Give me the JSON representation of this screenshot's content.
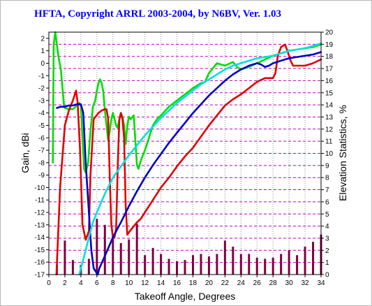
{
  "chart_data": {
    "type": "line",
    "title": "HFTA, Copyright ARRL 2003-2004, by N6BV, Ver. 1.03",
    "xlabel": "Takeoff Angle, Degrees",
    "ylabel": "Gain, dBi",
    "y2label": "Elevation Statistics, %",
    "xlim": [
      0,
      34
    ],
    "ylim": [
      -17,
      2.5
    ],
    "y2lim": [
      0,
      20
    ],
    "x_ticks": [
      "0",
      "2",
      "4",
      "6",
      "8",
      "10",
      "12",
      "14",
      "16",
      "18",
      "20",
      "22",
      "24",
      "26",
      "28",
      "30",
      "32",
      "34"
    ],
    "y_ticks": [
      "2",
      "1",
      "0",
      "-1",
      "-2",
      "-3",
      "-4",
      "-5",
      "-6",
      "-7",
      "-8",
      "-9",
      "-10",
      "-11",
      "-12",
      "-13",
      "-14",
      "-15",
      "-16",
      "-17"
    ],
    "y2_ticks": [
      "20",
      "19",
      "18",
      "17",
      "16",
      "15",
      "14",
      "13",
      "12",
      "11",
      "10",
      "9",
      "8",
      "7",
      "6",
      "5",
      "4",
      "3",
      "2",
      "1",
      "0"
    ],
    "grid": true,
    "colors": {
      "green": "#00dd00",
      "red": "#e00000",
      "blue": "#0000cc",
      "cyan": "#00e0e0",
      "bars": "#800040",
      "grid_h": "#c000c0",
      "grid_v": "#909090",
      "title": "#0000ff"
    },
    "series": [
      {
        "color": "green",
        "x": [
          0.5,
          0.6,
          0.8,
          1,
          1.2,
          1.5,
          1.9,
          2,
          2.5,
          3,
          3.5,
          3.8,
          4,
          4.2,
          4.4,
          4.6,
          4.9,
          5.2,
          5.5,
          5.8,
          6,
          6.2,
          6.4,
          6.6,
          6.8,
          7,
          7.2,
          7.4,
          7.6,
          7.8,
          8,
          8.2,
          8.4,
          8.6,
          8.8,
          9,
          9.2,
          9.4,
          9.6,
          9.8,
          10,
          10.2,
          10.6,
          11,
          11.2,
          11.5,
          12,
          12.5,
          13,
          13.5,
          14,
          15,
          16,
          17,
          18,
          19,
          19.5,
          20,
          21,
          22,
          23,
          23.5,
          24,
          25,
          26,
          27,
          28,
          29,
          30,
          31,
          32,
          33,
          34
        ],
        "y": [
          -8,
          1.5,
          2.5,
          1.5,
          0.5,
          -0.5,
          -3.5,
          -3.6,
          -3.7,
          -3.7,
          -3.4,
          -3.2,
          -3.5,
          -6,
          -8.5,
          -8.8,
          -8,
          -5.5,
          -3.5,
          -3,
          -2.2,
          -1.6,
          -1.3,
          -1.6,
          -2.3,
          -3.8,
          -5,
          -6.2,
          -5.5,
          -4.5,
          -4,
          -4.5,
          -5,
          -5.2,
          -4.5,
          -4,
          -4.3,
          -5,
          -6.5,
          -5,
          -4.3,
          -4.5,
          -4.2,
          -8.2,
          -8.5,
          -7.8,
          -7,
          -6,
          -5,
          -4.5,
          -4.2,
          -3.5,
          -3,
          -2.5,
          -2,
          -1.6,
          -1.5,
          -0.8,
          0,
          -0.2,
          0.1,
          -0.3,
          -0.5,
          -0.3,
          0,
          0.3,
          0.6,
          0.8,
          1,
          1.1,
          1.2,
          1.3,
          1.5
        ]
      },
      {
        "color": "red",
        "x": [
          0.95,
          1.05,
          1.4,
          2,
          2.5,
          3,
          3.4,
          3.6,
          3.9,
          4.2,
          4.6,
          5,
          5.2,
          5.6,
          6.2,
          6.6,
          7,
          7.2,
          7.4,
          7.6,
          7.8,
          8,
          8.2,
          8.4,
          8.6,
          8.8,
          9,
          9.2,
          9.4,
          9.6,
          9.8,
          10,
          10.5,
          11,
          11.5,
          12,
          13,
          14,
          15,
          16,
          17,
          18,
          19,
          20,
          21,
          22,
          23,
          24,
          25,
          26,
          27,
          28,
          28.3,
          28.6,
          29,
          29.5,
          29.8,
          30.2,
          30.5,
          31,
          32,
          33,
          34
        ],
        "y": [
          -17,
          -15.5,
          -10,
          -5,
          -3.8,
          -3,
          -2.2,
          -3.2,
          -7,
          -13,
          -14.2,
          -13.5,
          -9,
          -4.5,
          -4,
          -3.8,
          -3.7,
          -3.7,
          -4.4,
          -9,
          -13,
          -14,
          -14,
          -13.3,
          -8.5,
          -4.6,
          -4,
          -4.5,
          -6,
          -11.5,
          -13.8,
          -13.6,
          -13.2,
          -12.8,
          -12.5,
          -12,
          -11,
          -10,
          -9.2,
          -8.3,
          -7.5,
          -6.8,
          -5.9,
          -5,
          -4.2,
          -3.4,
          -2.9,
          -2.5,
          -2,
          -1.5,
          -1.2,
          -1.2,
          -0.8,
          0.6,
          1.3,
          1.5,
          1,
          0.2,
          -0.2,
          -0.2,
          -0.2,
          0,
          0.3
        ]
      },
      {
        "color": "blue",
        "x": [
          1,
          1.5,
          2,
          2.5,
          3,
          3.5,
          4,
          4.3,
          4.6,
          5,
          5.3,
          5.6,
          5.9,
          6.1,
          6.3,
          7,
          8,
          9,
          10,
          11,
          12,
          13,
          14,
          15,
          16,
          17,
          18,
          19,
          20,
          21,
          22,
          23,
          24,
          25,
          26,
          26.5,
          27,
          27.5,
          28,
          28.5,
          29,
          30,
          31,
          32,
          33,
          34
        ],
        "y": [
          -3.6,
          -3.5,
          -3.5,
          -3.4,
          -3.4,
          -3.3,
          -3.3,
          -4,
          -8,
          -12,
          -15,
          -16.5,
          -16.8,
          -17,
          -16.5,
          -15.5,
          -14,
          -12.8,
          -11.5,
          -10.3,
          -9.2,
          -8.2,
          -7.3,
          -6.4,
          -5.6,
          -4.8,
          -4,
          -3.3,
          -2.6,
          -2,
          -1.4,
          -0.9,
          -0.5,
          -0.2,
          0,
          -0.1,
          -0.3,
          -0.2,
          0,
          0.1,
          0.2,
          0.4,
          0.5,
          0.6,
          0.7,
          0.9
        ]
      },
      {
        "color": "cyan",
        "x": [
          3.8,
          4,
          4.5,
          5,
          5.5,
          6,
          7,
          8,
          9,
          10,
          11,
          12,
          13,
          14,
          15,
          16,
          17,
          18,
          19,
          20,
          21,
          22,
          23,
          24,
          25,
          26,
          27,
          28,
          29,
          30,
          31,
          32,
          33,
          34
        ],
        "y": [
          -17,
          -16.5,
          -15.3,
          -14,
          -12.8,
          -12,
          -10.5,
          -9.2,
          -8.3,
          -7.4,
          -6.6,
          -5.8,
          -5.1,
          -4.4,
          -3.8,
          -3.2,
          -2.7,
          -2.2,
          -1.7,
          -1.3,
          -0.9,
          -0.5,
          -0.2,
          0,
          0.2,
          0.4,
          0.5,
          0.6,
          0.8,
          1,
          1.1,
          1.2,
          1.4,
          1.6
        ]
      }
    ],
    "bars": {
      "x": [
        1,
        2,
        3,
        4,
        5,
        6,
        7,
        8,
        9,
        10,
        11,
        12,
        13,
        14,
        15,
        16,
        17,
        18,
        19,
        20,
        21,
        22,
        23,
        24,
        25,
        26,
        27,
        28,
        29,
        30,
        31,
        32,
        33,
        34
      ],
      "values": [
        0.8,
        2.8,
        1.2,
        0.8,
        1.3,
        4.6,
        4.1,
        3.2,
        2.6,
        2.9,
        4.2,
        1.6,
        2.2,
        1.7,
        1.3,
        1.1,
        1.2,
        1.6,
        1.7,
        1.5,
        1.7,
        2.8,
        2.3,
        1.7,
        1.7,
        1.4,
        1.3,
        1.4,
        1.7,
        2,
        1.6,
        2.3,
        2.7,
        3.3
      ]
    }
  }
}
